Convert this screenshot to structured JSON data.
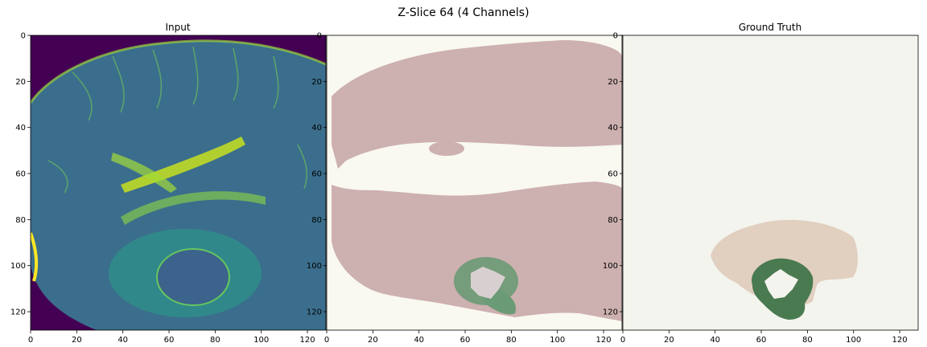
{
  "figure": {
    "suptitle": "Z-Slice 64 (4 Channels)"
  },
  "chart_data": [
    {
      "type": "heatmap",
      "title": "Input",
      "xlim": [
        0,
        128
      ],
      "ylim": [
        128,
        0
      ],
      "xticks": [
        0,
        20,
        40,
        60,
        80,
        100,
        120
      ],
      "yticks": [
        0,
        20,
        40,
        60,
        80,
        100,
        120
      ],
      "colormap": "viridis"
    },
    {
      "type": "heatmap",
      "title": "",
      "xlim": [
        0,
        128
      ],
      "ylim": [
        128,
        0
      ],
      "xticks": [
        0,
        20,
        40,
        60,
        80,
        100,
        120
      ],
      "yticks": [
        0,
        20,
        40,
        60,
        80,
        100,
        120
      ],
      "colors": {
        "background": "#f9f8f1",
        "brain": "#cdb0b0",
        "edema": "#6b9a76",
        "core": "#d8d0d0"
      }
    },
    {
      "type": "heatmap",
      "title": "Ground Truth",
      "xlim": [
        0,
        128
      ],
      "ylim": [
        128,
        0
      ],
      "xticks": [
        0,
        20,
        40,
        60,
        80,
        100,
        120
      ],
      "yticks": [
        0,
        20,
        40,
        60,
        80,
        100,
        120
      ],
      "colors": {
        "background": "#f4f4ee",
        "tissue": "#e1cfc0",
        "edema": "#4a7a50",
        "core": "#f4f4ee"
      }
    }
  ]
}
